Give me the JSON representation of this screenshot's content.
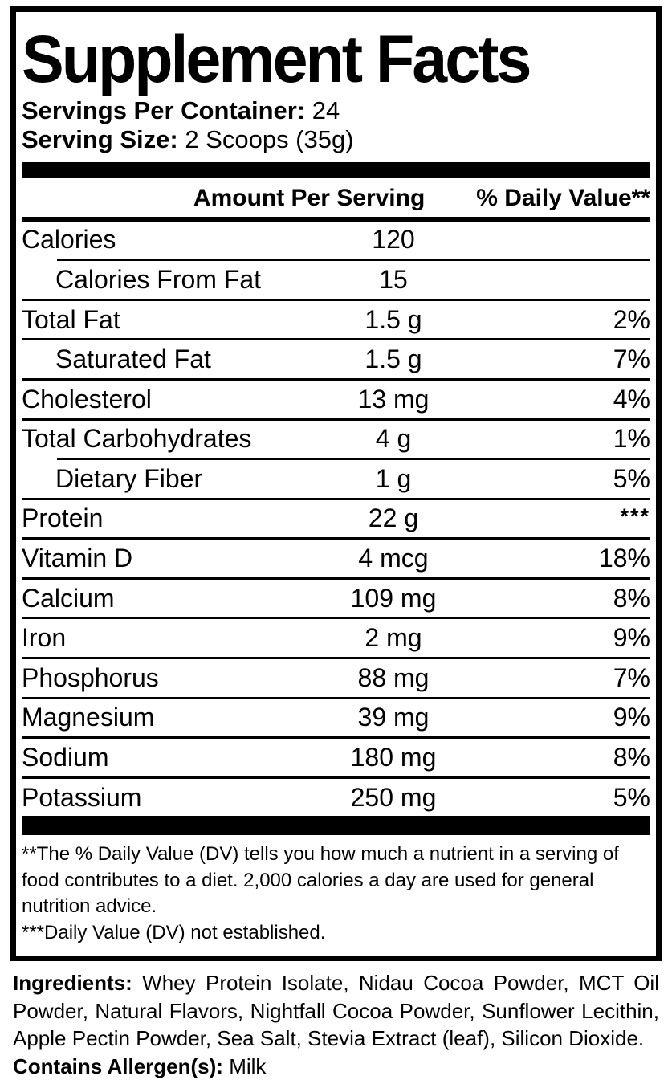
{
  "panel": {
    "title": "Supplement Facts",
    "serving_info": [
      {
        "label": "Servings Per Container:",
        "value": "24"
      },
      {
        "label": "Serving Size:",
        "value": "2 Scoops (35g)"
      }
    ],
    "columns": {
      "amount_header": "Amount Per Serving",
      "dv_header": "% Daily Value**"
    },
    "rows": [
      {
        "name": "Calories",
        "amount": "120",
        "dv": "",
        "indent": false,
        "short_rule": false
      },
      {
        "name": "Calories From Fat",
        "amount": "15",
        "dv": "",
        "indent": true,
        "short_rule": true
      },
      {
        "name": "Total Fat",
        "amount": "1.5 g",
        "dv": "2%",
        "indent": false,
        "short_rule": false
      },
      {
        "name": "Saturated Fat",
        "amount": "1.5 g",
        "dv": "7%",
        "indent": true,
        "short_rule": false
      },
      {
        "name": "Cholesterol",
        "amount": "13 mg",
        "dv": "4%",
        "indent": false,
        "short_rule": false
      },
      {
        "name": "Total Carbohydrates",
        "amount": "4 g",
        "dv": "1%",
        "indent": false,
        "short_rule": false
      },
      {
        "name": "Dietary Fiber",
        "amount": "1 g",
        "dv": "5%",
        "indent": true,
        "short_rule": true
      },
      {
        "name": "Protein",
        "amount": "22 g",
        "dv": "***",
        "indent": false,
        "short_rule": false
      },
      {
        "name": "Vitamin D",
        "amount": "4 mcg",
        "dv": "18%",
        "indent": false,
        "short_rule": false
      },
      {
        "name": "Calcium",
        "amount": "109 mg",
        "dv": "8%",
        "indent": false,
        "short_rule": false
      },
      {
        "name": "Iron",
        "amount": "2 mg",
        "dv": "9%",
        "indent": false,
        "short_rule": false
      },
      {
        "name": "Phosphorus",
        "amount": "88 mg",
        "dv": "7%",
        "indent": false,
        "short_rule": false
      },
      {
        "name": "Magnesium",
        "amount": "39 mg",
        "dv": "9%",
        "indent": false,
        "short_rule": false
      },
      {
        "name": "Sodium",
        "amount": "180 mg",
        "dv": "8%",
        "indent": false,
        "short_rule": false
      },
      {
        "name": "Potassium",
        "amount": "250 mg",
        "dv": "5%",
        "indent": false,
        "short_rule": false
      }
    ],
    "footnotes": [
      "**The % Daily Value (DV) tells you how much a nutrient in a serving of food contributes to a diet. 2,000 calories a day are used for general nutrition advice.",
      "***Daily Value (DV) not established."
    ]
  },
  "ingredients": {
    "label": "Ingredients:",
    "text": "Whey Protein Isolate, Nidau Cocoa Powder, MCT Oil Powder, Natural Flavors, Nightfall Cocoa Powder, Sunflower Lecithin, Apple Pectin Powder, Sea Salt, Stevia Extract (leaf), Silicon Dioxide.",
    "allergen_label": "Contains Allergen(s):",
    "allergen_value": "Milk"
  },
  "colors": {
    "ink": "#000000",
    "background": "#ffffff"
  }
}
